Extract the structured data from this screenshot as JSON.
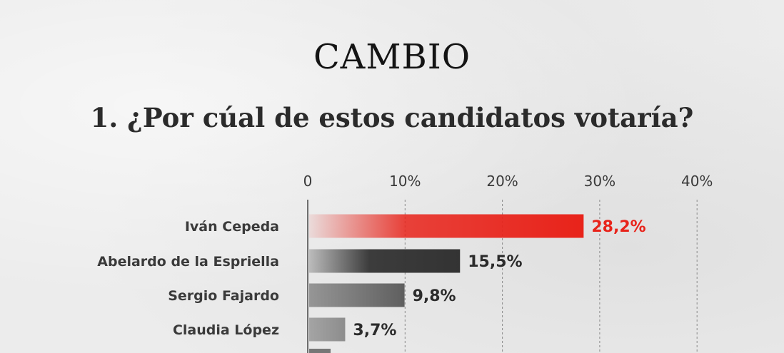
{
  "header": {
    "logo": "CAMBIO",
    "question": "1. ¿Por cúal de estos candidatos votaría?"
  },
  "colors": {
    "highlight": "#e8231a",
    "dark": "#333333",
    "mid": "#5f5f5f",
    "light": "#8d8d8d"
  },
  "chart_data": {
    "type": "bar",
    "orientation": "horizontal",
    "x_ticks": [
      "0",
      "10%",
      "20%",
      "30%",
      "40%"
    ],
    "xlim": [
      0,
      40
    ],
    "grid": true,
    "categories": [
      "Iván Cepeda",
      "Abelardo de la Espriella",
      "Sergio Fajardo",
      "Claudia López"
    ],
    "values": [
      28.2,
      15.5,
      9.8,
      3.7
    ],
    "value_labels": [
      "28,2%",
      "15,5%",
      "9,8%",
      "3,7%"
    ],
    "bar_colors": [
      "#e8231a",
      "#333333",
      "#5f5f5f",
      "#8d8d8d"
    ]
  }
}
